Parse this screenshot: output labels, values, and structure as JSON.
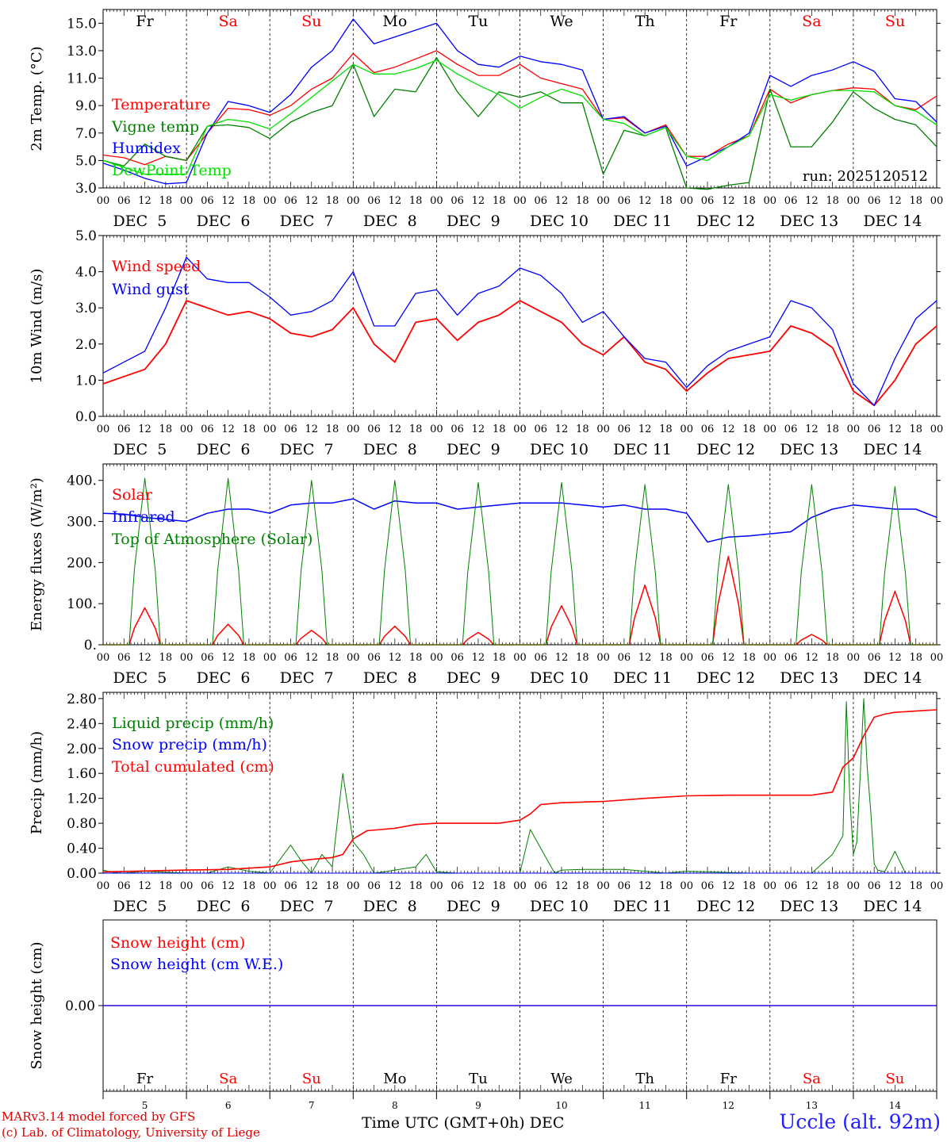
{
  "day_abbrevs": [
    {
      "label": "Fr",
      "weekend": false
    },
    {
      "label": "Sa",
      "weekend": true
    },
    {
      "label": "Su",
      "weekend": true
    },
    {
      "label": "Mo",
      "weekend": false
    },
    {
      "label": "Tu",
      "weekend": false
    },
    {
      "label": "We",
      "weekend": false
    },
    {
      "label": "Th",
      "weekend": false
    },
    {
      "label": "Fr",
      "weekend": false
    },
    {
      "label": "Sa",
      "weekend": true
    },
    {
      "label": "Su",
      "weekend": true
    }
  ],
  "date_labels": [
    "DEC  5",
    "DEC  6",
    "DEC  7",
    "DEC  8",
    "DEC  9",
    "DEC 10",
    "DEC 11",
    "DEC 12",
    "DEC 13",
    "DEC 14"
  ],
  "day_numbers": [
    "5",
    "6",
    "7",
    "8",
    "9",
    "10",
    "11",
    "12",
    "13",
    "14"
  ],
  "hour_ticks": [
    "00",
    "06",
    "12",
    "18"
  ],
  "hour_end": "00",
  "run_label": "run: 2025120512",
  "x_title": "Time UTC (GMT+0h)",
  "x_month": "DEC",
  "station": "Uccle (alt. 92m)",
  "credits": [
    "MARv3.14 model forced by GFS",
    "(c) Lab. of Climatology, University of Liege"
  ],
  "colors": {
    "red": "#ff0000",
    "green": "#008000",
    "blue": "#0000ff",
    "lightgreen": "#00e000",
    "weekend": "#ff0000",
    "grid": "#000000"
  },
  "chart_data": [
    {
      "type": "line",
      "panel": "temperature",
      "ylabel": "2m Temp. (°C)",
      "ylim": [
        3,
        16
      ],
      "yticks": [
        "3.0",
        "5.0",
        "7.0",
        "9.0",
        "11.0",
        "13.0",
        "15.0"
      ],
      "x_unit": "hours since DEC 5 00 UTC",
      "x": [
        0,
        6,
        12,
        18,
        24,
        30,
        36,
        42,
        48,
        54,
        60,
        66,
        72,
        78,
        84,
        90,
        96,
        102,
        108,
        114,
        120,
        126,
        132,
        138,
        144,
        150,
        156,
        162,
        168,
        174,
        180,
        186,
        192,
        198,
        204,
        210,
        216,
        222,
        228,
        234,
        240
      ],
      "series": [
        {
          "name": "Temperature",
          "color": "#ff0000",
          "values": [
            5.4,
            5.2,
            4.7,
            5.3,
            5.0,
            7.0,
            8.8,
            8.7,
            8.3,
            9.0,
            10.2,
            11.0,
            12.8,
            11.4,
            11.8,
            12.4,
            13.0,
            12.0,
            11.2,
            11.2,
            12.0,
            11.0,
            10.6,
            10.2,
            8.0,
            8.1,
            7.0,
            7.6,
            5.3,
            5.3,
            6.2,
            6.8,
            10.2,
            9.2,
            9.8,
            10.1,
            10.3,
            10.2,
            9.0,
            8.7,
            9.7
          ]
        },
        {
          "name": "Vigne temp",
          "color": "#008000",
          "values": [
            5.0,
            4.6,
            6.2,
            5.3,
            5.0,
            7.5,
            7.6,
            7.4,
            6.6,
            7.8,
            8.5,
            9.0,
            12.0,
            8.2,
            10.2,
            10.0,
            12.5,
            10.0,
            8.2,
            10.0,
            9.6,
            10.0,
            9.2,
            9.2,
            4.0,
            7.2,
            6.8,
            7.4,
            3.0,
            2.9,
            3.2,
            3.4,
            10.2,
            6.0,
            6.0,
            7.8,
            10.0,
            8.8,
            8.0,
            7.6,
            6.0
          ]
        },
        {
          "name": "Humidex",
          "color": "#0000ff",
          "values": [
            4.8,
            4.3,
            3.7,
            3.3,
            3.4,
            7.0,
            9.3,
            9.0,
            8.5,
            9.8,
            11.8,
            13.0,
            15.3,
            13.5,
            14.0,
            14.5,
            15.0,
            13.0,
            12.0,
            11.8,
            12.6,
            12.2,
            12.0,
            11.6,
            8.0,
            8.2,
            7.0,
            7.5,
            4.6,
            5.3,
            6.0,
            7.0,
            11.2,
            10.4,
            11.2,
            11.6,
            12.2,
            11.5,
            9.5,
            9.3,
            7.8
          ]
        },
        {
          "name": "DewPoint Temp",
          "color": "#00e000",
          "values": [
            5.0,
            4.5,
            4.0,
            4.0,
            4.0,
            7.5,
            8.0,
            7.8,
            7.3,
            8.4,
            9.6,
            10.8,
            12.0,
            11.3,
            11.3,
            11.7,
            12.3,
            11.3,
            10.5,
            9.8,
            8.8,
            9.6,
            10.2,
            9.7,
            8.0,
            7.7,
            6.8,
            7.4,
            5.3,
            5.0,
            6.0,
            6.8,
            9.8,
            9.4,
            9.8,
            10.1,
            10.1,
            10.0,
            9.0,
            8.6,
            7.6
          ]
        }
      ]
    },
    {
      "type": "line",
      "panel": "wind",
      "ylabel": "10m Wind (m/s)",
      "ylim": [
        0,
        5
      ],
      "yticks": [
        "0.0",
        "1.0",
        "2.0",
        "3.0",
        "4.0",
        "5.0"
      ],
      "x_unit": "hours since DEC 5 00 UTC",
      "x": [
        0,
        6,
        12,
        18,
        24,
        30,
        36,
        42,
        48,
        54,
        60,
        66,
        72,
        78,
        84,
        90,
        96,
        102,
        108,
        114,
        120,
        126,
        132,
        138,
        144,
        150,
        156,
        162,
        168,
        174,
        180,
        186,
        192,
        198,
        204,
        210,
        216,
        222,
        228,
        234,
        240
      ],
      "series": [
        {
          "name": "Wind speed",
          "color": "#ff0000",
          "values": [
            0.9,
            1.1,
            1.3,
            2.0,
            3.2,
            3.0,
            2.8,
            2.9,
            2.7,
            2.3,
            2.2,
            2.4,
            3.0,
            2.0,
            1.5,
            2.6,
            2.7,
            2.1,
            2.6,
            2.8,
            3.2,
            2.9,
            2.6,
            2.0,
            1.7,
            2.2,
            1.5,
            1.3,
            0.7,
            1.2,
            1.6,
            1.7,
            1.8,
            2.5,
            2.3,
            1.9,
            0.7,
            0.3,
            1.0,
            2.0,
            2.5
          ]
        },
        {
          "name": "Wind gust",
          "color": "#0000ff",
          "values": [
            1.2,
            1.5,
            1.8,
            3.0,
            4.4,
            3.8,
            3.7,
            3.7,
            3.3,
            2.8,
            2.9,
            3.2,
            4.0,
            2.5,
            2.5,
            3.4,
            3.5,
            2.8,
            3.4,
            3.6,
            4.1,
            3.9,
            3.4,
            2.6,
            2.9,
            2.2,
            1.6,
            1.5,
            0.8,
            1.4,
            1.8,
            2.0,
            2.2,
            3.2,
            3.0,
            2.4,
            0.9,
            0.3,
            1.6,
            2.7,
            3.2
          ]
        }
      ]
    },
    {
      "type": "line",
      "panel": "energy",
      "ylabel": "Energy fluxes (W/m²)",
      "ylim": [
        0,
        440
      ],
      "yticks": [
        "0.",
        "100.",
        "200.",
        "300.",
        "400."
      ],
      "x_unit": "hours since DEC 5 00 UTC",
      "series": [
        {
          "name": "Solar",
          "color": "#ff0000",
          "peaks": [
            90,
            50,
            35,
            45,
            30,
            95,
            145,
            215,
            25,
            130
          ],
          "peak_hour": 12
        },
        {
          "name": "Infrared",
          "color": "#0000ff",
          "x": [
            0,
            6,
            12,
            18,
            24,
            30,
            36,
            42,
            48,
            54,
            60,
            66,
            72,
            78,
            84,
            90,
            96,
            102,
            108,
            114,
            120,
            126,
            132,
            138,
            144,
            150,
            156,
            162,
            168,
            174,
            180,
            186,
            192,
            198,
            204,
            210,
            216,
            222,
            228,
            234,
            240
          ],
          "values": [
            320,
            318,
            310,
            305,
            300,
            320,
            330,
            330,
            320,
            340,
            345,
            345,
            355,
            330,
            350,
            345,
            345,
            330,
            335,
            340,
            345,
            345,
            345,
            340,
            335,
            340,
            330,
            330,
            320,
            250,
            262,
            265,
            270,
            275,
            310,
            330,
            340,
            335,
            330,
            330,
            310
          ]
        },
        {
          "name": "Top of Atmosphere (Solar)",
          "color": "#008000",
          "peaks": [
            405,
            405,
            400,
            400,
            395,
            395,
            390,
            390,
            390,
            385
          ],
          "peak_hour": 12
        }
      ]
    },
    {
      "type": "line",
      "panel": "precip",
      "ylabel": "Precip (mm/h)",
      "ylim": [
        0,
        2.9
      ],
      "yticks": [
        "0.00",
        "0.40",
        "0.80",
        "1.20",
        "1.60",
        "2.00",
        "2.40",
        "2.80"
      ],
      "x_unit": "hours since DEC 5 00 UTC",
      "series": [
        {
          "name": "Liquid precip (mm/h)",
          "color": "#008000",
          "x": [
            0,
            3,
            6,
            12,
            24,
            30,
            36,
            42,
            48,
            54,
            57,
            60,
            63,
            66,
            69,
            72,
            75,
            78,
            81,
            84,
            90,
            93,
            96,
            102,
            108,
            114,
            117,
            120,
            123,
            126,
            130,
            132,
            138,
            150,
            162,
            168,
            186,
            204,
            210,
            213,
            214,
            215,
            216,
            217,
            218,
            219,
            220,
            221,
            222,
            223,
            225,
            228,
            231,
            240
          ],
          "values": [
            0.05,
            0.01,
            0.0,
            0.03,
            0.0,
            0.0,
            0.1,
            0.03,
            0.0,
            0.45,
            0.2,
            0.0,
            0.3,
            0.1,
            1.6,
            0.5,
            0.3,
            0.0,
            0.02,
            0.05,
            0.1,
            0.3,
            0.02,
            0.0,
            0.0,
            0.0,
            0.0,
            0.0,
            0.7,
            0.4,
            0.0,
            0.05,
            0.06,
            0.06,
            0.0,
            0.03,
            0.0,
            0.0,
            0.3,
            0.6,
            2.75,
            1.2,
            0.3,
            0.5,
            1.6,
            2.8,
            1.7,
            1.0,
            0.15,
            0.05,
            0.02,
            0.35,
            0.0,
            0.0
          ]
        },
        {
          "name": "Snow precip (mm/h)",
          "color": "#0000ff",
          "values": "0"
        },
        {
          "name": "Total cumulated (cm)",
          "color": "#ff0000",
          "x": [
            0,
            24,
            36,
            48,
            54,
            60,
            66,
            69,
            72,
            76,
            80,
            84,
            90,
            96,
            108,
            114,
            120,
            123,
            126,
            132,
            144,
            156,
            168,
            180,
            192,
            204,
            210,
            213,
            216,
            219,
            222,
            225,
            228,
            234,
            240
          ],
          "values": [
            0.02,
            0.05,
            0.06,
            0.1,
            0.18,
            0.22,
            0.25,
            0.3,
            0.55,
            0.68,
            0.7,
            0.72,
            0.78,
            0.8,
            0.8,
            0.8,
            0.85,
            0.95,
            1.1,
            1.13,
            1.15,
            1.2,
            1.24,
            1.25,
            1.25,
            1.25,
            1.3,
            1.7,
            1.85,
            2.2,
            2.5,
            2.55,
            2.58,
            2.6,
            2.62
          ]
        }
      ]
    },
    {
      "type": "line",
      "panel": "snow",
      "ylabel": "Snow height (cm)",
      "ylim": [
        -1,
        1
      ],
      "yticks": [
        "0.00"
      ],
      "x_unit": "hours since DEC 5 00 UTC",
      "x": [
        0,
        240
      ],
      "series": [
        {
          "name": "Snow height (cm)",
          "color": "#ff0000",
          "values": [
            0,
            0
          ]
        },
        {
          "name": "Snow height (cm W.E.)",
          "color": "#0000ff",
          "values": [
            0,
            0
          ]
        }
      ]
    }
  ]
}
